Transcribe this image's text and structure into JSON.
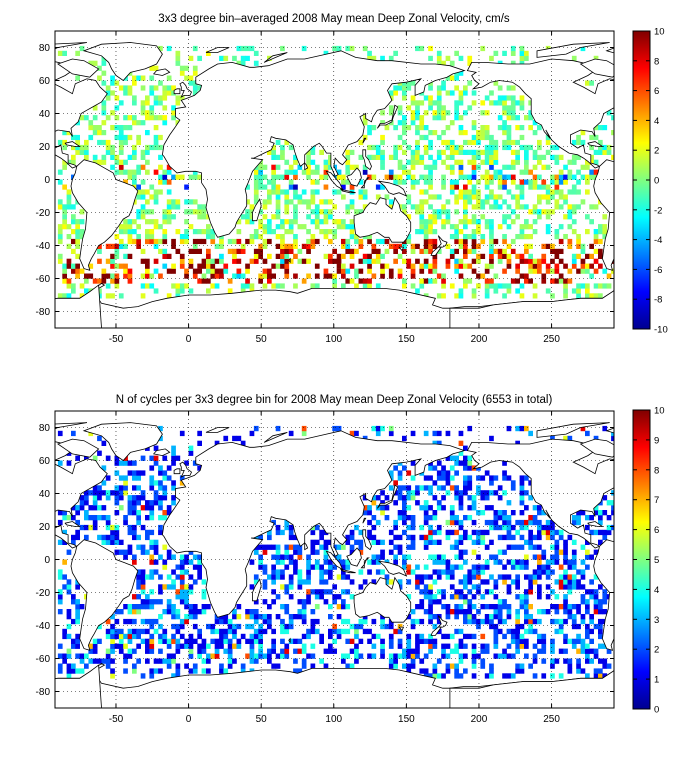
{
  "chart_data": [
    {
      "type": "heatmap",
      "title": "3x3 degree bin–averaged 2008 May mean Deep Zonal Velocity, cm/s",
      "xlabel": "",
      "ylabel": "",
      "xlim": [
        -92,
        293
      ],
      "ylim": [
        -90,
        90
      ],
      "x_ticks": [
        -50,
        0,
        50,
        100,
        150,
        200,
        250
      ],
      "y_ticks": [
        -80,
        -60,
        -40,
        -20,
        0,
        20,
        40,
        60,
        80
      ],
      "grid": true,
      "bin_size_deg": 3,
      "colorbar": {
        "range": [
          -10,
          10
        ],
        "ticks": [
          -10,
          -8,
          -6,
          -4,
          -2,
          0,
          2,
          4,
          6,
          8,
          10
        ],
        "colormap": "jet"
      }
    },
    {
      "type": "heatmap",
      "title": "N of cycles per 3x3 degree bin for 2008 May mean Deep Zonal Velocity (6553 in total)",
      "xlabel": "",
      "ylabel": "",
      "xlim": [
        -92,
        293
      ],
      "ylim": [
        -90,
        90
      ],
      "x_ticks": [
        -50,
        0,
        50,
        100,
        150,
        200,
        250
      ],
      "y_ticks": [
        -80,
        -60,
        -40,
        -20,
        0,
        20,
        40,
        60,
        80
      ],
      "grid": true,
      "bin_size_deg": 3,
      "total_cycles": 6553,
      "colorbar": {
        "range": [
          0,
          10
        ],
        "ticks": [
          0,
          1,
          2,
          3,
          4,
          5,
          6,
          7,
          8,
          9,
          10
        ],
        "colormap": "jet"
      }
    }
  ],
  "colors": {
    "jet_stops": [
      "#00008f",
      "#0000ff",
      "#00ffff",
      "#80ff80",
      "#ffff00",
      "#ff0000",
      "#800000"
    ],
    "axes": "#000000",
    "land_outline": "#000000",
    "background": "#ffffff"
  }
}
